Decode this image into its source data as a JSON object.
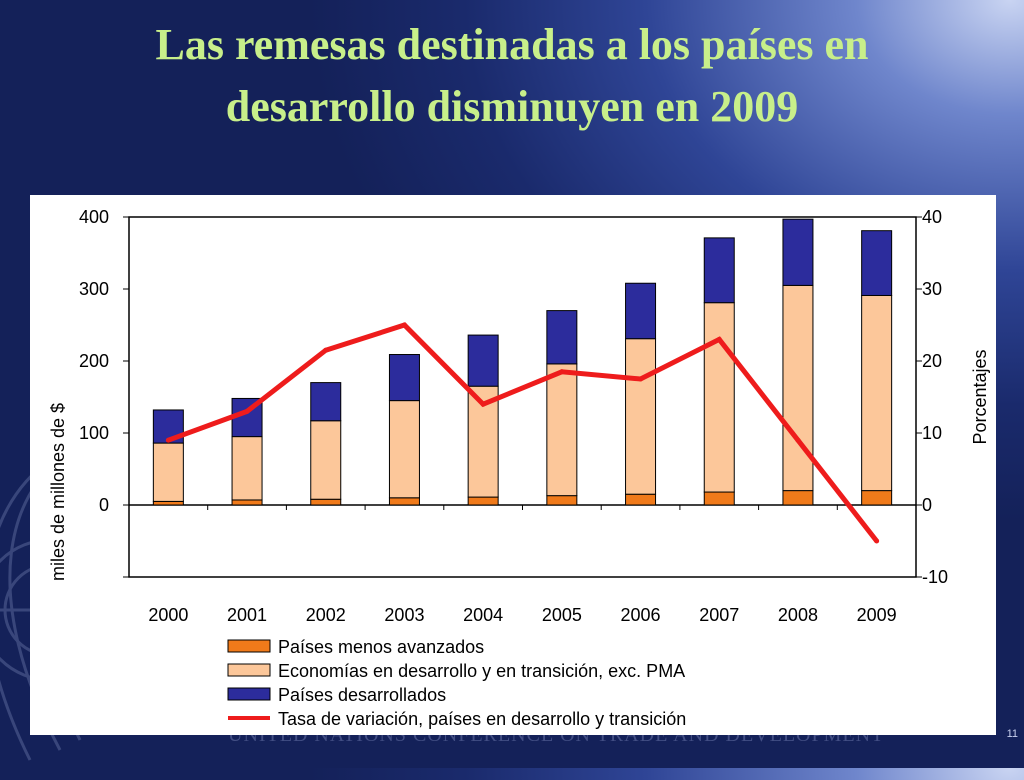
{
  "slide": {
    "title_line1": "Las remesas destinadas a los países en",
    "title_line2": "desarrollo disminuyen en 2009",
    "footer": "UNITED NATIONS CONFERENCE ON TRADE AND DEVELOPMENT",
    "page_number": "11"
  },
  "colors": {
    "ldc": "#f07a1a",
    "developing": "#fcc79a",
    "developed": "#2c2c9c",
    "growth_line": "#ee1c1c",
    "title": "#c8ef8a"
  },
  "chart_data": {
    "type": "bar",
    "stacked": true,
    "categories": [
      "2000",
      "2001",
      "2002",
      "2003",
      "2004",
      "2005",
      "2006",
      "2007",
      "2008",
      "2009"
    ],
    "series": [
      {
        "name": "Países menos avanzados",
        "kind": "bar",
        "axis": "left",
        "color": "#f07a1a",
        "values": [
          5,
          7,
          8,
          10,
          11,
          13,
          15,
          18,
          20,
          20
        ]
      },
      {
        "name": "Economías en desarrollo y en transición, exc. PMA",
        "kind": "bar",
        "axis": "left",
        "color": "#fcc79a",
        "values": [
          81,
          88,
          109,
          135,
          154,
          183,
          216,
          263,
          285,
          271
        ]
      },
      {
        "name": "Países desarrollados",
        "kind": "bar",
        "axis": "left",
        "color": "#2c2c9c",
        "values": [
          46,
          53,
          53,
          64,
          71,
          74,
          77,
          90,
          92,
          90
        ]
      },
      {
        "name": "Tasa de variación, países en desarrollo y transición",
        "kind": "line",
        "axis": "right",
        "color": "#ee1c1c",
        "values": [
          9,
          13,
          21.5,
          25,
          14,
          18.5,
          17.5,
          23,
          9,
          -5
        ]
      }
    ],
    "ylabel": "miles de millones de $",
    "y2label": "Porcentajes",
    "ylim": [
      -100,
      400
    ],
    "y2lim": [
      -10,
      40
    ],
    "yticks": [
      "400",
      "300",
      "200",
      "100",
      "0"
    ],
    "y2ticks": [
      "40",
      "30",
      "20",
      "10",
      "0",
      "-10"
    ],
    "legend_position": "bottom",
    "grid": false
  }
}
